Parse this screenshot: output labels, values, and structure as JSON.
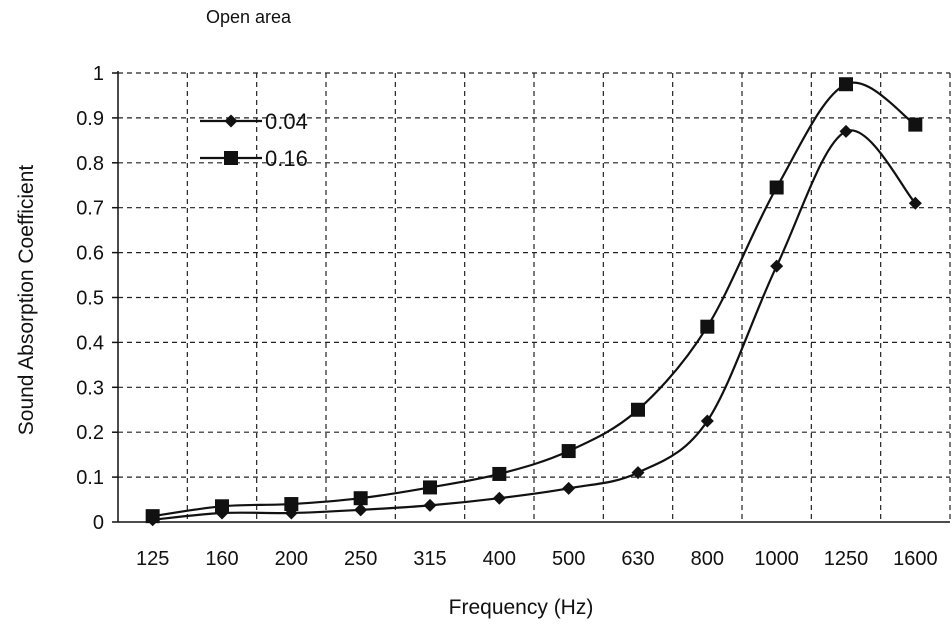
{
  "chart_data": {
    "type": "line",
    "title": "Open area",
    "xlabel": "Frequency (Hz)",
    "ylabel": "Sound Absorption Coefficient",
    "categories": [
      "125",
      "160",
      "200",
      "250",
      "315",
      "400",
      "500",
      "630",
      "800",
      "1000",
      "1250",
      "1600"
    ],
    "yticks": [
      "0",
      "0.1",
      "0.2",
      "0.3",
      "0.4",
      "0.5",
      "0.6",
      "0.7",
      "0.8",
      "0.9",
      "1"
    ],
    "ylim": [
      0,
      1
    ],
    "grid": true,
    "legend_position": "top-left",
    "series": [
      {
        "name": "0.04",
        "marker": "diamond",
        "values": [
          0.005,
          0.02,
          0.02,
          0.027,
          0.037,
          0.053,
          0.075,
          0.11,
          0.225,
          0.57,
          0.87,
          0.71
        ]
      },
      {
        "name": "0.16",
        "marker": "square",
        "values": [
          0.013,
          0.035,
          0.04,
          0.053,
          0.077,
          0.107,
          0.158,
          0.25,
          0.435,
          0.745,
          0.975,
          0.885
        ]
      }
    ]
  }
}
